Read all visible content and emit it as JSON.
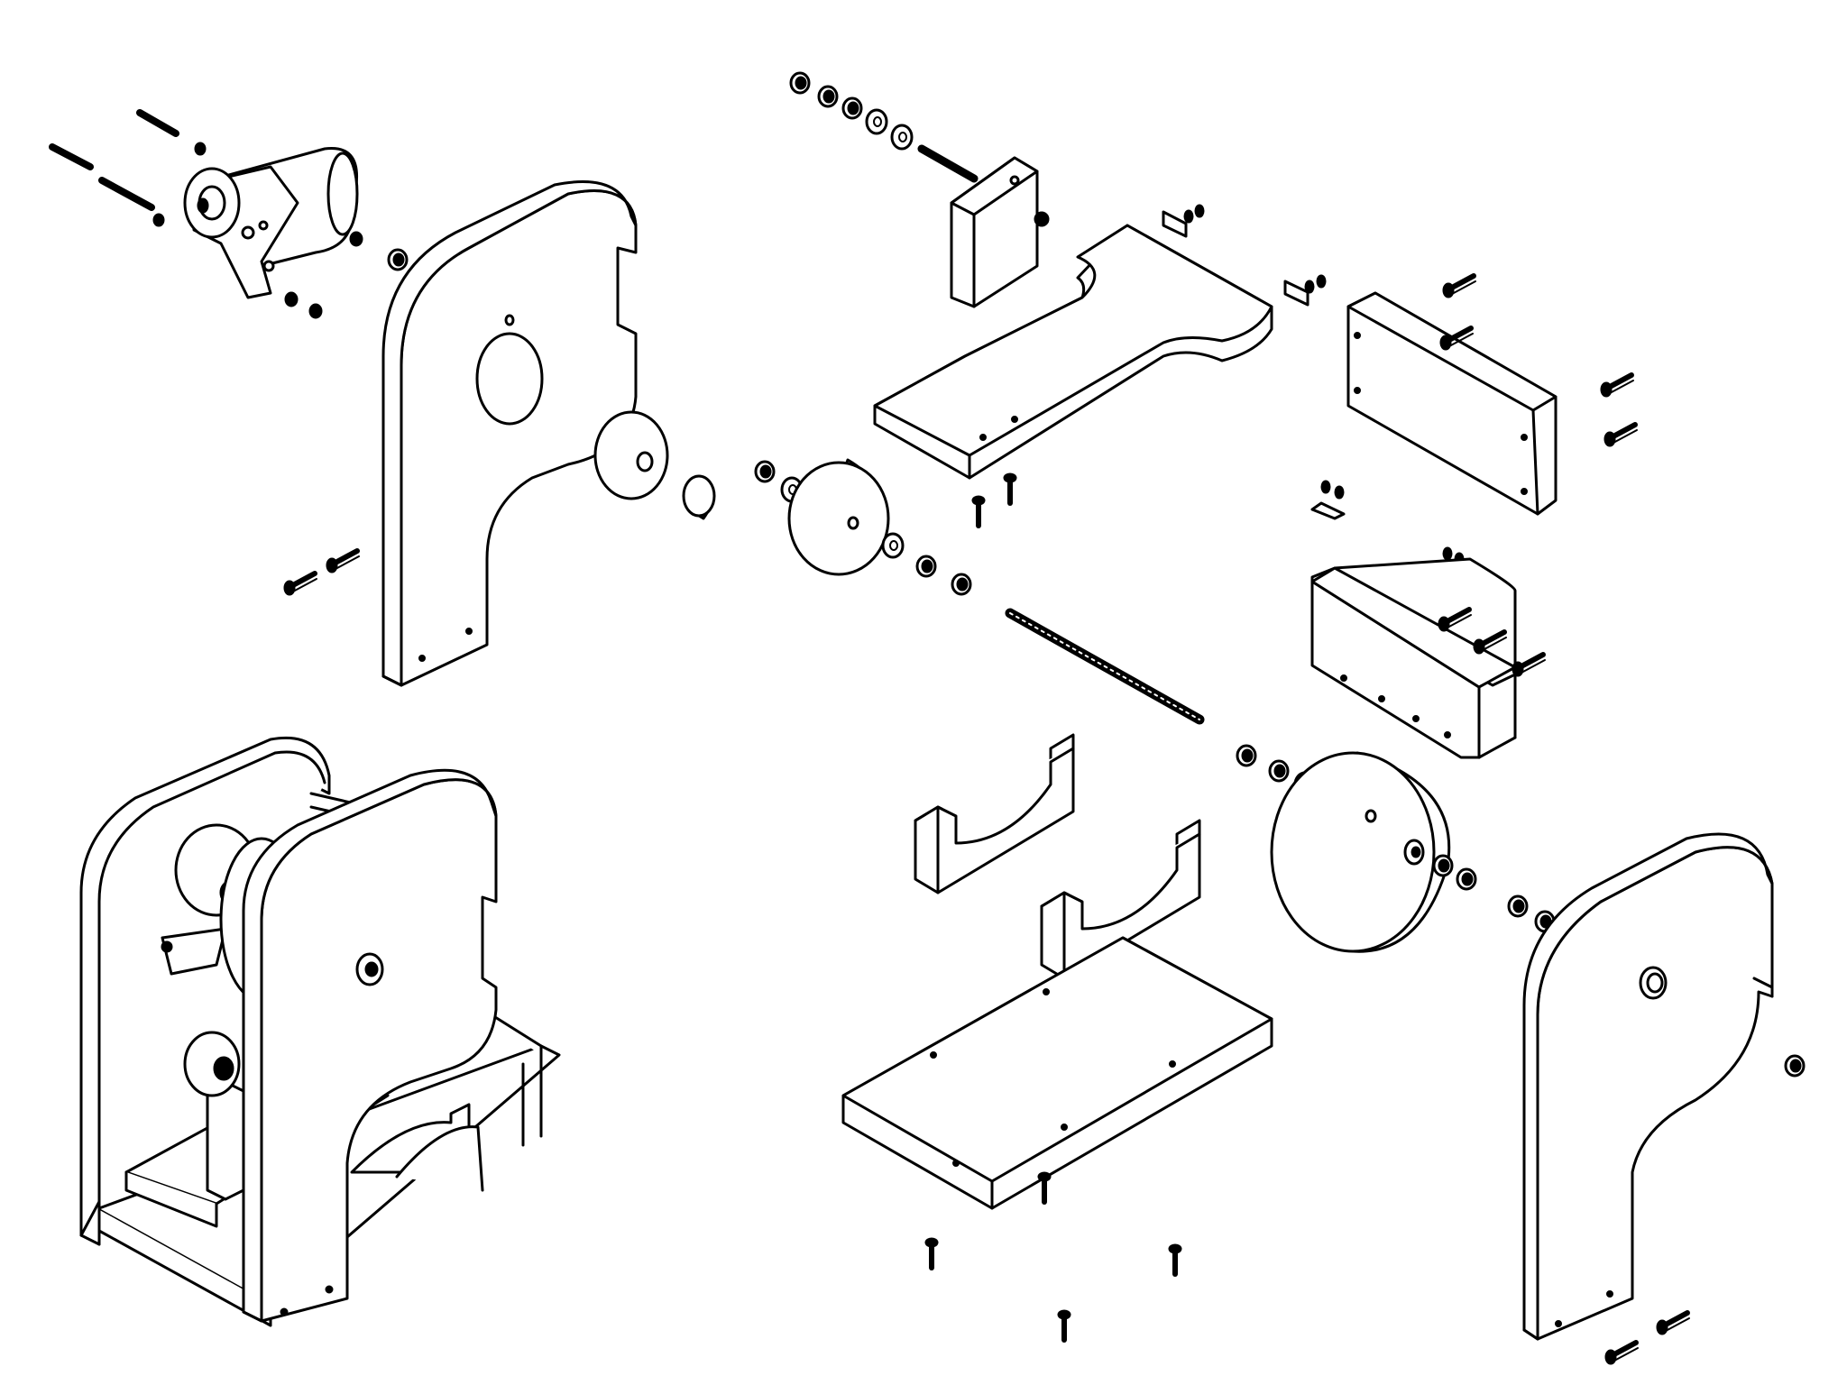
{
  "figure": {
    "kind": "isometric-exploded-assembly-drawing",
    "line_color": "#000000",
    "fill_color": "#ffffff",
    "parts": [
      {
        "name": "gear-motor"
      },
      {
        "name": "left-side-plate"
      },
      {
        "name": "right-side-plate"
      },
      {
        "name": "drive-wheel"
      },
      {
        "name": "large-drum-disc"
      },
      {
        "name": "tension-block"
      },
      {
        "name": "top-shelf-board"
      },
      {
        "name": "back-panel"
      },
      {
        "name": "front-panel"
      },
      {
        "name": "cradle-support"
      },
      {
        "name": "base-board"
      },
      {
        "name": "threaded-rod"
      },
      {
        "name": "assembled-machine"
      }
    ]
  }
}
